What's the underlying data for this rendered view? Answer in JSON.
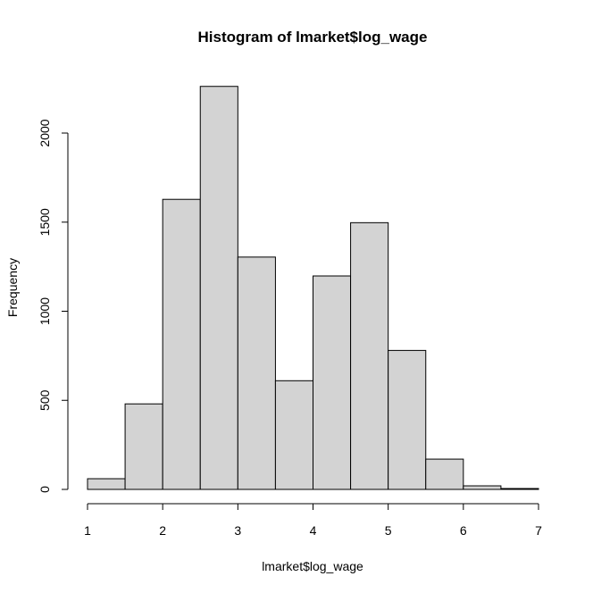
{
  "chart_data": {
    "type": "bar",
    "title": "Histogram of lmarket$log_wage",
    "xlabel": "lmarket$log_wage",
    "ylabel": "Frequency",
    "bin_edges": [
      1,
      1.5,
      2,
      2.5,
      3,
      3.5,
      4,
      4.5,
      5,
      5.5,
      6,
      6.5,
      7
    ],
    "values": [
      60,
      480,
      1628,
      2262,
      1304,
      610,
      1198,
      1497,
      780,
      170,
      20,
      5
    ],
    "xlim": [
      1,
      7
    ],
    "ylim": [
      0,
      2262
    ],
    "x_ticks": [
      "1",
      "2",
      "3",
      "4",
      "5",
      "6",
      "7"
    ],
    "y_ticks": [
      "0",
      "500",
      "1000",
      "1500",
      "2000"
    ],
    "bar_fill": "#d3d3d3",
    "bar_stroke": "#000000",
    "grid": false,
    "legend": "none"
  }
}
